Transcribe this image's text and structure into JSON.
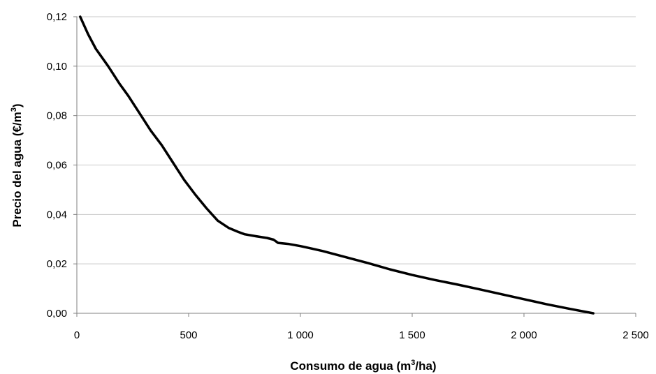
{
  "chart_data": {
    "type": "line",
    "xlabel_parts": [
      "Consumo de agua (m",
      "3",
      "/ha)"
    ],
    "ylabel_parts": [
      "Precio del agua (€/m",
      "3",
      ")"
    ],
    "xlim": [
      0,
      2500
    ],
    "ylim": [
      0,
      0.12
    ],
    "x_ticks": [
      0,
      500,
      1000,
      1500,
      2000,
      2500
    ],
    "x_tick_labels": [
      "0",
      "500",
      "1 000",
      "1 500",
      "2 000",
      "2 500"
    ],
    "y_ticks": [
      0,
      0.02,
      0.04,
      0.06,
      0.08,
      0.1,
      0.12
    ],
    "y_tick_labels": [
      "0,00",
      "0,02",
      "0,04",
      "0,06",
      "0,08",
      "0,10",
      "0,12"
    ],
    "grid": "horizontal",
    "line_color": "#000000",
    "grid_color": "#c8c8c8",
    "axis_color": "#808080",
    "series": [
      {
        "x": [
          15,
          50,
          85,
          140,
          190,
          230,
          280,
          330,
          380,
          430,
          480,
          530,
          580,
          630,
          680,
          720,
          750,
          800,
          850,
          880,
          900,
          950,
          1000,
          1050,
          1100,
          1200,
          1300,
          1400,
          1500,
          1600,
          1700,
          1800,
          1900,
          2000,
          2100,
          2200,
          2310
        ],
        "y": [
          0.12,
          0.113,
          0.107,
          0.1,
          0.093,
          0.088,
          0.081,
          0.074,
          0.068,
          0.061,
          0.054,
          0.048,
          0.0425,
          0.0375,
          0.0345,
          0.033,
          0.032,
          0.0312,
          0.0305,
          0.0298,
          0.0285,
          0.028,
          0.0272,
          0.0262,
          0.0252,
          0.0228,
          0.0204,
          0.0178,
          0.0155,
          0.0135,
          0.0117,
          0.0097,
          0.0077,
          0.0057,
          0.0037,
          0.0019,
          0.0
        ]
      }
    ]
  }
}
